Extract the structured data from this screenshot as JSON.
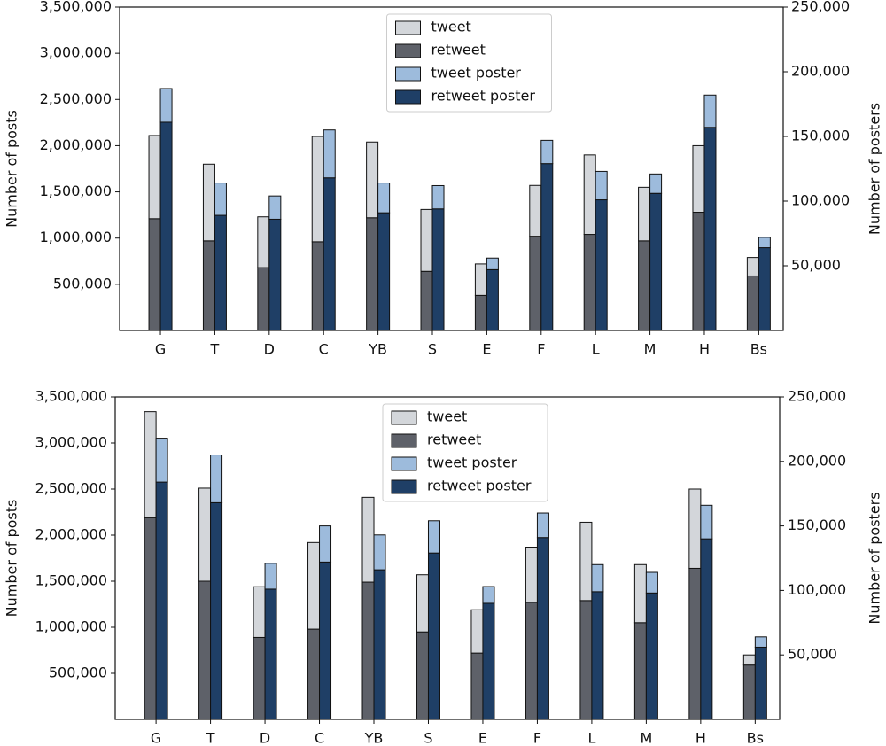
{
  "chart_data": [
    {
      "type": "bar",
      "ylabel": "Number of posts",
      "y2label": "Number of posters",
      "legend": "upper center",
      "categories": [
        "G",
        "T",
        "D",
        "C",
        "YB",
        "S",
        "E",
        "F",
        "L",
        "M",
        "H",
        "Bs"
      ],
      "series": [
        {
          "name": "tweet",
          "color": "#d3d6da",
          "values": [
            900000,
            830000,
            550000,
            1140000,
            820000,
            670000,
            340000,
            550000,
            860000,
            580000,
            720000,
            200000
          ]
        },
        {
          "name": "retweet",
          "color": "#5e6169",
          "values": [
            1210000,
            970000,
            680000,
            960000,
            1220000,
            640000,
            380000,
            1020000,
            1040000,
            970000,
            1280000,
            590000
          ]
        },
        {
          "name": "tweet poster",
          "color": "#9dbbdc",
          "axis": "y2",
          "values": [
            26000,
            25000,
            18000,
            37000,
            23000,
            18000,
            9000,
            18000,
            22000,
            15000,
            25000,
            8000
          ]
        },
        {
          "name": "retweet poster",
          "color": "#1f3f66",
          "axis": "y2",
          "values": [
            161000,
            89000,
            86000,
            118000,
            91000,
            94000,
            47000,
            129000,
            101000,
            106000,
            157000,
            64000
          ]
        }
      ],
      "ylim": [
        0,
        3500000
      ],
      "yticks": [
        {
          "value": 500000,
          "label": "500,000"
        },
        {
          "value": 1000000,
          "label": "1,000,000"
        },
        {
          "value": 1500000,
          "label": "1,500,000"
        },
        {
          "value": 2000000,
          "label": "2,000,000"
        },
        {
          "value": 2500000,
          "label": "2,500,000"
        },
        {
          "value": 3000000,
          "label": "3,000,000"
        },
        {
          "value": 3500000,
          "label": "3,500,000"
        }
      ],
      "y2lim": [
        0,
        250000
      ],
      "y2ticks": [
        {
          "value": 50000,
          "label": "50,000"
        },
        {
          "value": 100000,
          "label": "100,000"
        },
        {
          "value": 150000,
          "label": "150,000"
        },
        {
          "value": 200000,
          "label": "200,000"
        },
        {
          "value": 250000,
          "label": "250,000"
        }
      ]
    },
    {
      "type": "bar",
      "ylabel": "Number of posts",
      "y2label": "Number of posters",
      "legend": "upper center",
      "categories": [
        "G",
        "T",
        "D",
        "C",
        "YB",
        "S",
        "E",
        "F",
        "L",
        "M",
        "H",
        "Bs"
      ],
      "series": [
        {
          "name": "tweet",
          "color": "#d3d6da",
          "values": [
            1150000,
            1010000,
            550000,
            940000,
            920000,
            620000,
            470000,
            600000,
            850000,
            630000,
            860000,
            110000
          ]
        },
        {
          "name": "retweet",
          "color": "#5e6169",
          "values": [
            2190000,
            1500000,
            890000,
            980000,
            1490000,
            950000,
            720000,
            1270000,
            1290000,
            1050000,
            1640000,
            590000
          ]
        },
        {
          "name": "tweet poster",
          "color": "#9dbbdc",
          "axis": "y2",
          "values": [
            34000,
            37000,
            20000,
            28000,
            27000,
            25000,
            13000,
            19000,
            21000,
            16000,
            26000,
            8000
          ]
        },
        {
          "name": "retweet poster",
          "color": "#1f3f66",
          "axis": "y2",
          "values": [
            184000,
            168000,
            101000,
            122000,
            116000,
            129000,
            90000,
            141000,
            99000,
            98000,
            140000,
            56000
          ]
        }
      ],
      "ylim": [
        0,
        3500000
      ],
      "yticks": [
        {
          "value": 500000,
          "label": "500,000"
        },
        {
          "value": 1000000,
          "label": "1,000,000"
        },
        {
          "value": 1500000,
          "label": "1,500,000"
        },
        {
          "value": 2000000,
          "label": "2,000,000"
        },
        {
          "value": 2500000,
          "label": "2,500,000"
        },
        {
          "value": 3000000,
          "label": "3,000,000"
        },
        {
          "value": 3500000,
          "label": "3,500,000"
        }
      ],
      "y2lim": [
        0,
        250000
      ],
      "y2ticks": [
        {
          "value": 50000,
          "label": "50,000"
        },
        {
          "value": 100000,
          "label": "100,000"
        },
        {
          "value": 150000,
          "label": "150,000"
        },
        {
          "value": 200000,
          "label": "200,000"
        },
        {
          "value": 250000,
          "label": "250,000"
        }
      ]
    }
  ]
}
